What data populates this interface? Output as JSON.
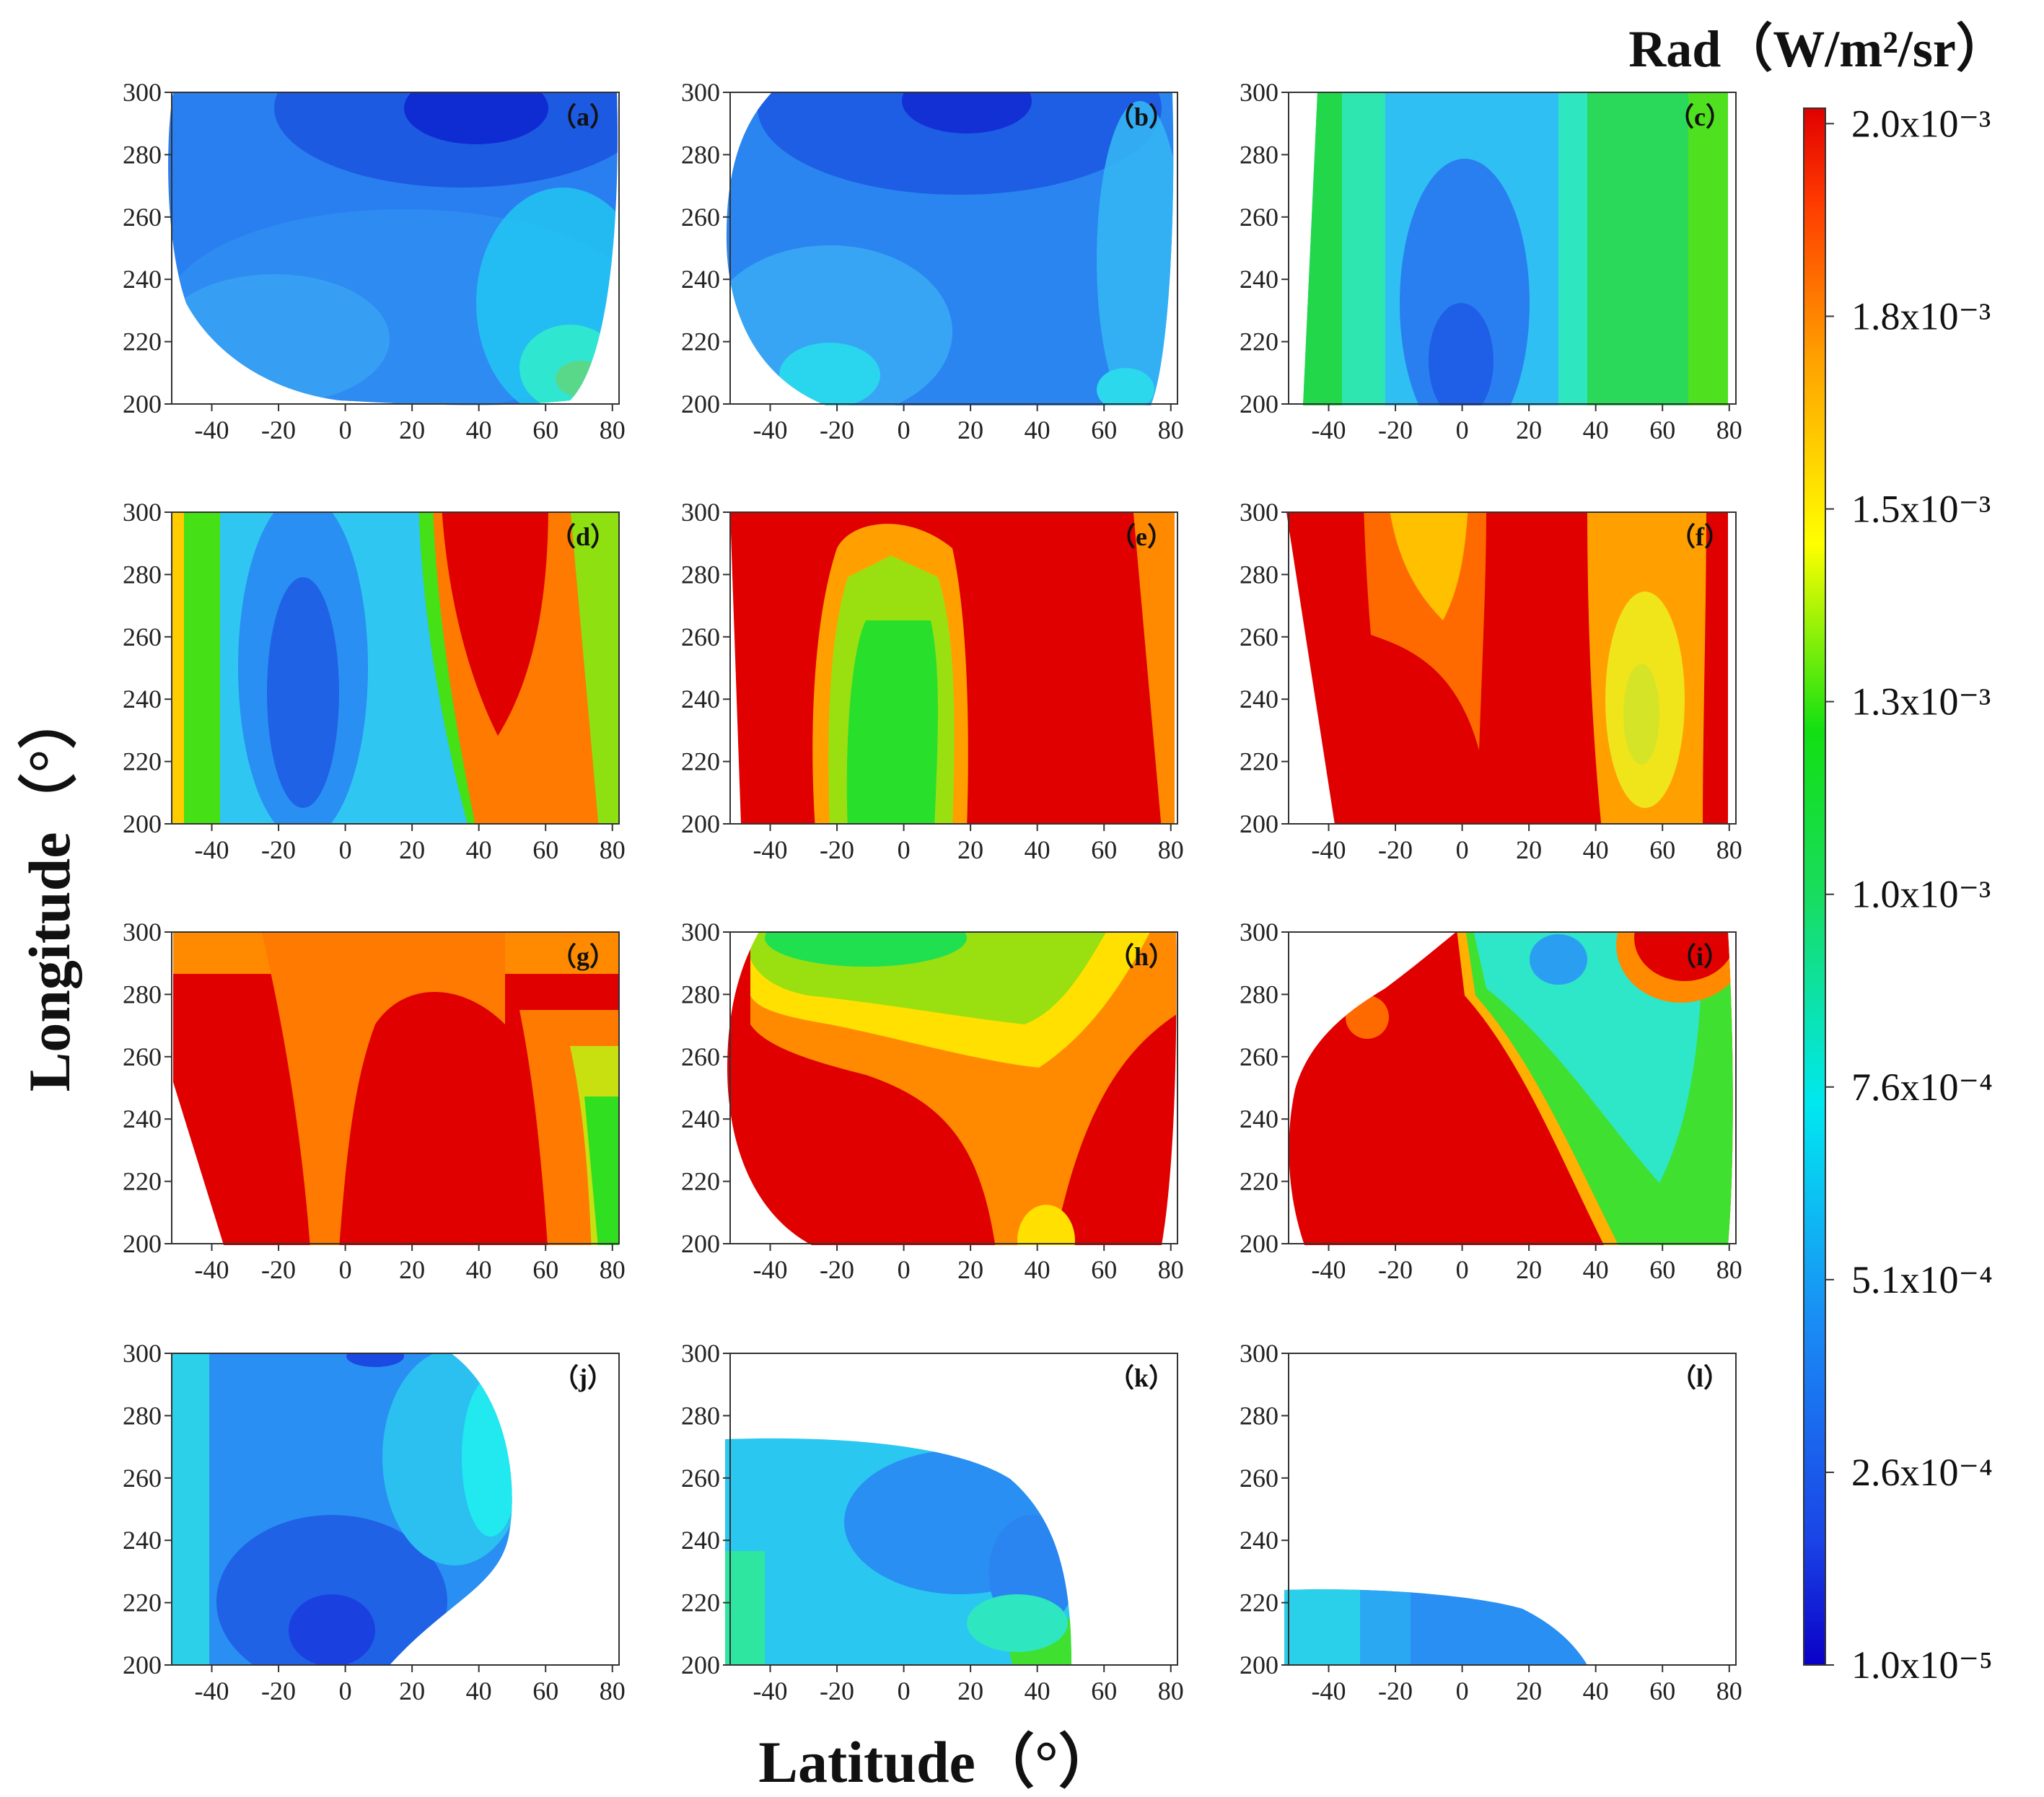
{
  "chart_data": {
    "type": "heatmap",
    "title": "",
    "xlabel": "Latitude（°）",
    "ylabel": "Longitude（°）",
    "xlim": [
      -52,
      82
    ],
    "ylim": [
      200,
      300
    ],
    "xticks": [
      "-40",
      "-20",
      "0",
      "20",
      "40",
      "60",
      "80"
    ],
    "yticks": [
      "200",
      "220",
      "240",
      "260",
      "280",
      "300"
    ],
    "colorbar": {
      "title": "Rad（W/m²/sr）",
      "min": 1e-05,
      "max": 0.00203,
      "ticks": [
        {
          "label": "1.0x10⁻⁵",
          "value": 1e-05
        },
        {
          "label": "2.6x10⁻⁴",
          "value": 0.00026
        },
        {
          "label": "5.1x10⁻⁴",
          "value": 0.00051
        },
        {
          "label": "7.6x10⁻⁴",
          "value": 0.00076
        },
        {
          "label": "1.0x10⁻³",
          "value": 0.00101
        },
        {
          "label": "1.3x10⁻³",
          "value": 0.00126
        },
        {
          "label": "1.5x10⁻³",
          "value": 0.00151
        },
        {
          "label": "1.8x10⁻³",
          "value": 0.00176
        },
        {
          "label": "2.0x10⁻³",
          "value": 0.00201
        }
      ]
    },
    "panels": [
      {
        "id": "a",
        "label": "（a）",
        "approx_range_x1e-3": [
          0.1,
          1.3
        ],
        "description_of_field": "mostly 0.2-0.5; min near lat 25, lon 295; max near lat 70, lon 210"
      },
      {
        "id": "b",
        "label": "（b）",
        "approx_range_x1e-3": [
          0.15,
          0.7
        ],
        "description_of_field": "mostly 0.3-0.5; min near lat 20, lon 295"
      },
      {
        "id": "c",
        "label": "（c）",
        "approx_range_x1e-3": [
          0.2,
          1.2
        ],
        "description_of_field": "low (~0.3) band at lat -10..20, higher (~1.1) at lat < -40 and lat 50..80"
      },
      {
        "id": "d",
        "label": "（d）",
        "approx_range_x1e-3": [
          0.3,
          2.0
        ],
        "description_of_field": "low band lat -20..0, saturated high band lat 30..60"
      },
      {
        "id": "e",
        "label": "（e）",
        "approx_range_x1e-3": [
          1.1,
          2.0
        ],
        "description_of_field": "mostly saturated; green column lat -20..10 (~1.2)"
      },
      {
        "id": "f",
        "label": "（f）",
        "approx_range_x1e-3": [
          1.4,
          2.0
        ],
        "description_of_field": "mostly saturated; yellow region lat 40..70 (~1.5)"
      },
      {
        "id": "g",
        "label": "（g）",
        "approx_range_x1e-3": [
          1.2,
          2.0
        ],
        "description_of_field": "mostly red-orange; green lat 70..80 at lon 210..260"
      },
      {
        "id": "h",
        "label": "（h）",
        "approx_range_x1e-3": [
          1.1,
          2.0
        ],
        "description_of_field": "green at top-left lon 280..300; yellow diagonal band; red elsewhere"
      },
      {
        "id": "i",
        "label": "（i）",
        "approx_range_x1e-3": [
          0.5,
          2.0
        ],
        "description_of_field": "red for lat < 10; cyan-green lat 10..80; red spot near lat 60, lon 295"
      },
      {
        "id": "j",
        "label": "（j）",
        "approx_range_x1e-3": [
          0.15,
          0.6
        ],
        "description_of_field": "blue, min near lat 0, lon 205; defined for lat < 50"
      },
      {
        "id": "k",
        "label": "（k）",
        "approx_range_x1e-3": [
          0.3,
          1.0
        ],
        "description_of_field": "defined lat -52..50, lon 200..275"
      },
      {
        "id": "l",
        "label": "（l）",
        "approx_range_x1e-3": [
          0.3,
          0.6
        ],
        "description_of_field": "defined lat -52..38, lon 200..225"
      }
    ]
  }
}
